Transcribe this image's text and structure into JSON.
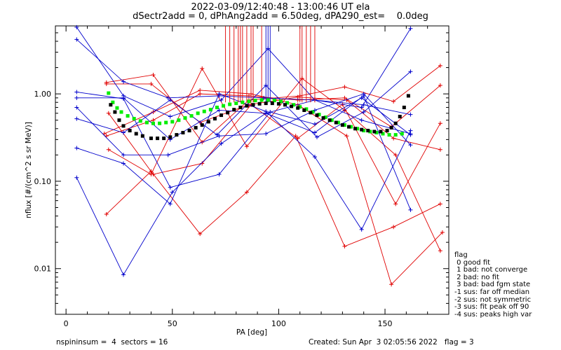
{
  "header": {
    "title_line1": "2022-03-09/12:40:48 - 13:00:46 UT ela",
    "title_line2": "dSectr2add = 0, dPhAng2add = 6.50deg, dPA290_est=    0.0deg"
  },
  "legend": {
    "title": "flag",
    "items": [
      " 0 good fit",
      " 1 bad: not converge",
      " 2 bad: no fit",
      " 3 bad: bad fgm state",
      "-1 sus: far off median",
      "-2 sus: not symmetric",
      "-3 sus: fit peak off 90",
      "-4 sus: peaks high var"
    ]
  },
  "footer": {
    "left": "nspininsum =  4  sectors = 16",
    "right": "Created: Sun Apr  3 02:05:56 2022   flag = 3"
  },
  "colors": {
    "red": "#e00000",
    "blue": "#0000cc",
    "green": "#00ee00",
    "black": "#000000"
  },
  "chart_data": {
    "type": "line",
    "xlabel": "PA [deg]",
    "ylabel": "nflux [#/(cm^2 s sr MeV)]",
    "xlim": [
      -5,
      180
    ],
    "ylim": [
      0.003,
      6.0
    ],
    "yscale": "log",
    "xticks": [
      0,
      50,
      100,
      150
    ],
    "yticks": [
      0.01,
      0.1,
      1.0
    ],
    "ytick_labels": [
      "0.01",
      "0.10",
      "1.00"
    ],
    "grid": false,
    "series": [
      {
        "color": "red",
        "x": [
          19,
          40,
          63,
          85,
          108,
          131,
          154,
          176
        ],
        "y": [
          0.042,
          0.13,
          0.025,
          0.075,
          0.33,
          0.018,
          0.03,
          0.055
        ]
      },
      {
        "color": "red",
        "x": [
          19,
          40,
          63,
          86,
          109,
          132,
          154,
          176
        ],
        "y": [
          1.3,
          1.3,
          0.47,
          0.75,
          0.92,
          0.85,
          0.31,
          0.23
        ]
      },
      {
        "color": "red",
        "x": [
          18,
          41,
          63,
          87,
          109,
          132,
          153,
          177
        ],
        "y": [
          0.35,
          0.62,
          1.1,
          1.0,
          0.75,
          0.33,
          0.0066,
          0.026
        ]
      },
      {
        "color": "red",
        "x": [
          20,
          40,
          64,
          85,
          111,
          131,
          155,
          176
        ],
        "y": [
          0.23,
          0.12,
          1.95,
          0.25,
          1.5,
          0.65,
          0.2,
          0.016
        ]
      },
      {
        "color": "red",
        "x": [
          20,
          41,
          64,
          87,
          109,
          130,
          155,
          176
        ],
        "y": [
          0.6,
          0.12,
          0.16,
          0.75,
          0.31,
          0.76,
          0.055,
          0.46
        ]
      },
      {
        "color": "red",
        "x": [
          19,
          41,
          64,
          86,
          110,
          131,
          154,
          176
        ],
        "y": [
          1.35,
          1.65,
          0.28,
          0.85,
          0.95,
          1.2,
          0.82,
          2.1
        ]
      },
      {
        "color": "red",
        "x": [
          19,
          41,
          63,
          86,
          109,
          131,
          153,
          176
        ],
        "y": [
          0.33,
          0.5,
          1.0,
          0.95,
          0.85,
          0.9,
          0.42,
          1.25
        ]
      },
      {
        "color": "blue",
        "x": [
          5,
          27,
          50,
          73,
          94,
          117,
          140,
          162
        ],
        "y": [
          0.11,
          0.0085,
          0.075,
          0.27,
          0.6,
          0.36,
          0.95,
          0.047
        ]
      },
      {
        "color": "blue",
        "x": [
          5,
          27,
          49,
          72,
          96,
          117,
          139,
          162
        ],
        "y": [
          1.05,
          0.88,
          0.085,
          0.12,
          0.62,
          0.45,
          0.9,
          0.34
        ]
      },
      {
        "color": "blue",
        "x": [
          5,
          27,
          49,
          72,
          94,
          117,
          139,
          162
        ],
        "y": [
          0.24,
          0.16,
          0.055,
          1.0,
          0.63,
          0.19,
          0.028,
          0.38
        ]
      },
      {
        "color": "blue",
        "x": [
          5,
          27,
          48,
          72,
          94,
          117,
          140,
          162
        ],
        "y": [
          0.7,
          0.2,
          0.2,
          0.33,
          0.35,
          0.65,
          1.0,
          0.26
        ]
      },
      {
        "color": "blue",
        "x": [
          5,
          27,
          49,
          71,
          94,
          118,
          140,
          162
        ],
        "y": [
          0.52,
          0.36,
          0.85,
          0.34,
          1.25,
          0.32,
          0.62,
          1.8
        ]
      },
      {
        "color": "blue",
        "x": [
          5,
          27,
          48,
          72,
          93,
          117,
          139,
          162
        ],
        "y": [
          4.2,
          1.38,
          0.9,
          0.95,
          0.9,
          0.85,
          0.7,
          5.6
        ]
      },
      {
        "color": "blue",
        "x": [
          5,
          27,
          49,
          72,
          94,
          117,
          140,
          162
        ],
        "y": [
          0.9,
          0.9,
          0.3,
          0.65,
          0.6,
          0.85,
          0.75,
          0.58
        ]
      },
      {
        "color": "blue",
        "x": [
          5,
          27,
          49,
          73,
          95,
          117,
          139,
          162
        ],
        "y": [
          5.8,
          0.95,
          0.55,
          0.85,
          3.3,
          0.85,
          0.5,
          0.35
        ]
      }
    ],
    "spikes": [
      {
        "color": "red",
        "x": [
          75,
          77,
          79,
          81,
          82,
          83,
          85,
          87,
          88,
          92
        ]
      },
      {
        "color": "blue",
        "x": [
          94,
          95,
          96
        ]
      },
      {
        "color": "red",
        "x": [
          110,
          111,
          113,
          115,
          117
        ]
      }
    ],
    "fits": [
      {
        "color": "green",
        "x": [
          20,
          22,
          24,
          26,
          29,
          32,
          35,
          38,
          41,
          44,
          47,
          50,
          53,
          56,
          59,
          62,
          65,
          68,
          71,
          74,
          77,
          80,
          83,
          86,
          89,
          92,
          95,
          98,
          101,
          104,
          107,
          110,
          113,
          116,
          119,
          122,
          125,
          128,
          131,
          134,
          137,
          140,
          143,
          146,
          149,
          152,
          155,
          158
        ],
        "y": [
          1.02,
          0.8,
          0.69,
          0.62,
          0.56,
          0.52,
          0.49,
          0.47,
          0.46,
          0.46,
          0.47,
          0.48,
          0.5,
          0.53,
          0.56,
          0.6,
          0.63,
          0.66,
          0.7,
          0.73,
          0.76,
          0.78,
          0.8,
          0.82,
          0.84,
          0.85,
          0.85,
          0.84,
          0.82,
          0.79,
          0.75,
          0.71,
          0.67,
          0.62,
          0.58,
          0.54,
          0.5,
          0.47,
          0.44,
          0.42,
          0.4,
          0.38,
          0.37,
          0.36,
          0.35,
          0.34,
          0.34,
          0.35
        ]
      },
      {
        "color": "black",
        "x": [
          21,
          23,
          25,
          27,
          30,
          33,
          36,
          40,
          43,
          46,
          49,
          52,
          55,
          58,
          61,
          64,
          67,
          70,
          73,
          76,
          79,
          82,
          85,
          88,
          91,
          94,
          97,
          100,
          103,
          106,
          109,
          112,
          115,
          118,
          121,
          124,
          127,
          130,
          133,
          136,
          139,
          142,
          145,
          148,
          151,
          153,
          155,
          157,
          159,
          161
        ],
        "y": [
          0.75,
          0.62,
          0.5,
          0.43,
          0.38,
          0.35,
          0.33,
          0.31,
          0.31,
          0.31,
          0.32,
          0.34,
          0.36,
          0.38,
          0.41,
          0.44,
          0.48,
          0.52,
          0.57,
          0.61,
          0.66,
          0.7,
          0.73,
          0.75,
          0.77,
          0.78,
          0.78,
          0.77,
          0.75,
          0.72,
          0.69,
          0.65,
          0.61,
          0.57,
          0.53,
          0.5,
          0.47,
          0.44,
          0.42,
          0.4,
          0.39,
          0.38,
          0.37,
          0.37,
          0.38,
          0.41,
          0.46,
          0.55,
          0.7,
          0.95
        ]
      }
    ]
  }
}
